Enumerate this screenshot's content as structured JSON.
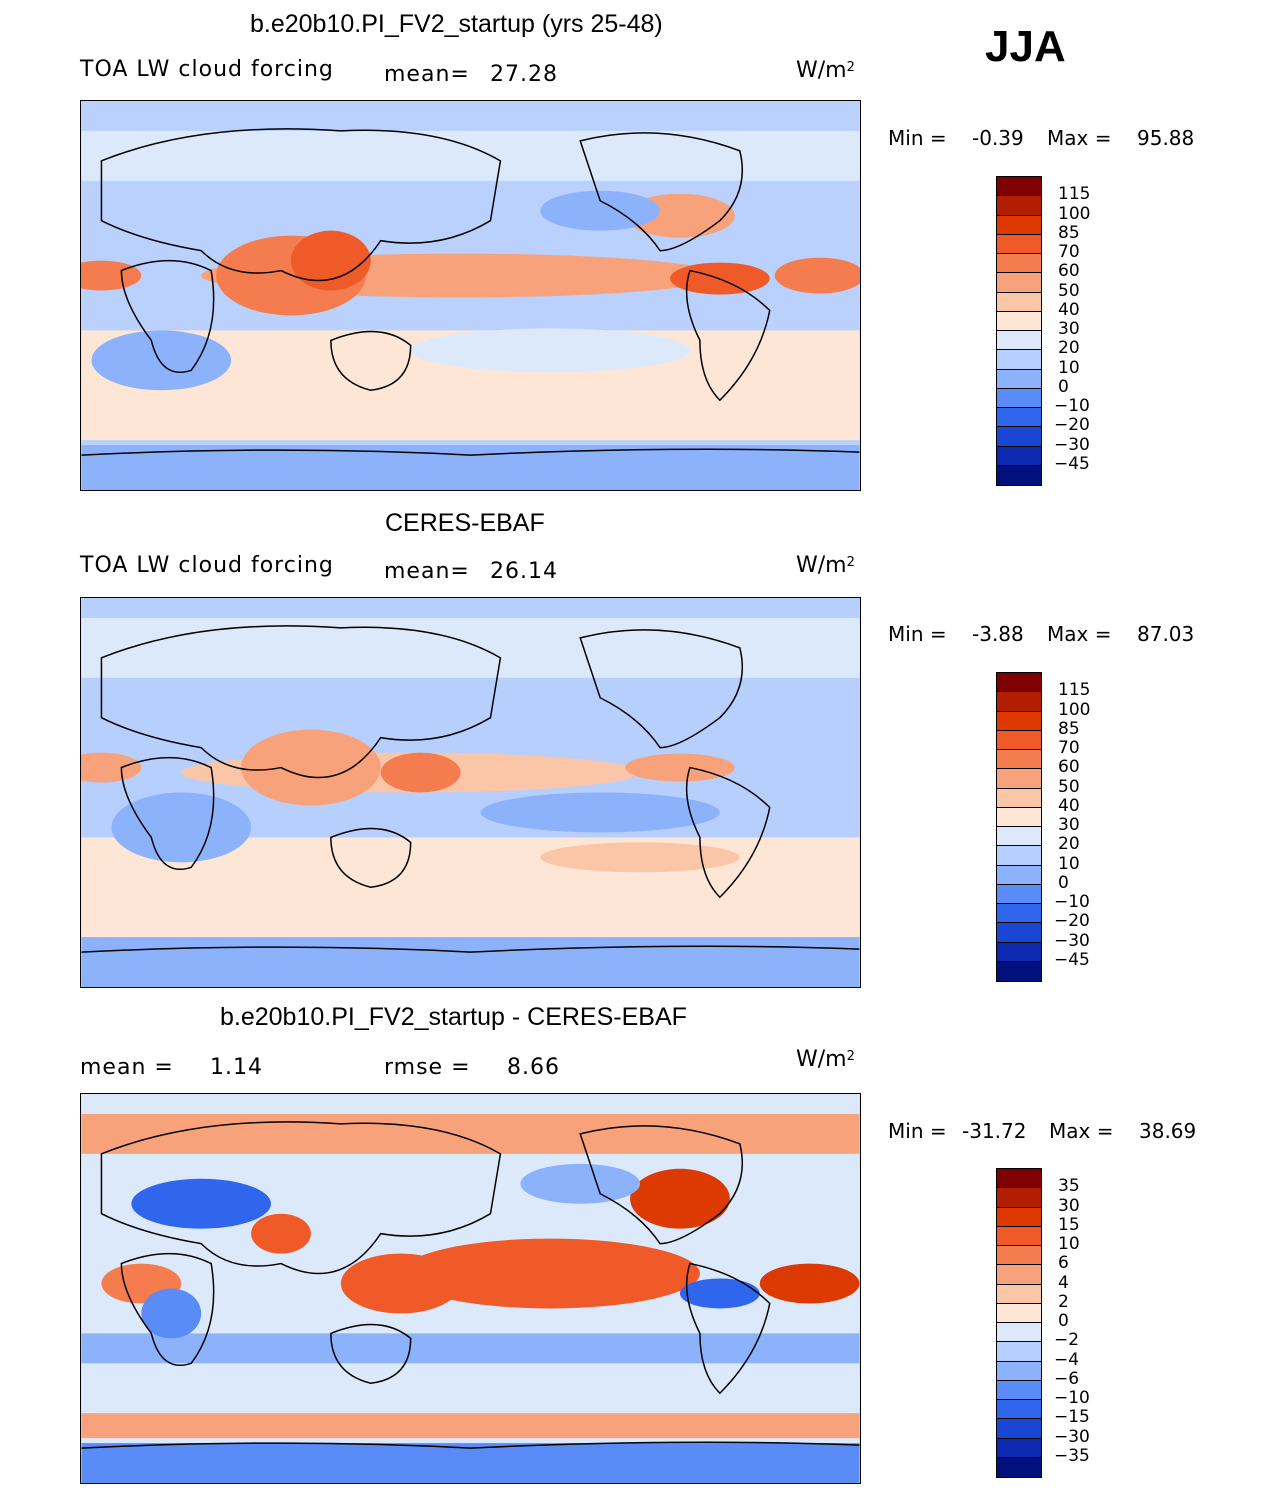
{
  "season": "JJA",
  "colors": {
    "ocean_base": "#c6dcff",
    "land_line": "#000000"
  },
  "panels": [
    {
      "id": "model",
      "title": "b.e20b10.PI_FV2_startup (yrs 25-48)",
      "left_label": "TOA LW cloud forcing",
      "stat1_label": "mean=",
      "stat1_value": "27.28",
      "units_base": "W/m",
      "units_sup": "2",
      "min_label": "Min =",
      "min_value": "-0.39",
      "max_label": "Max =",
      "max_value": "95.88",
      "colorbar": {
        "labels": [
          "115",
          "100",
          "85",
          "70",
          "60",
          "50",
          "40",
          "30",
          "20",
          "10",
          "0",
          "−10",
          "−20",
          "−30",
          "−45"
        ],
        "colors": [
          "#7f0000",
          "#b21e00",
          "#dc3a00",
          "#f05a28",
          "#f47c4e",
          "#f8a27c",
          "#fbc6a8",
          "#fde6d6",
          "#dce9fb",
          "#b6cffc",
          "#8bb2fb",
          "#5a8cf7",
          "#3066ee",
          "#1a46d6",
          "#0c2ab0",
          "#00107d"
        ]
      }
    },
    {
      "id": "obs",
      "title": "CERES-EBAF",
      "left_label": "TOA LW cloud forcing",
      "stat1_label": "mean=",
      "stat1_value": "26.14",
      "units_base": "W/m",
      "units_sup": "2",
      "min_label": "Min =",
      "min_value": "-3.88",
      "max_label": "Max =",
      "max_value": "87.03",
      "colorbar": {
        "labels": [
          "115",
          "100",
          "85",
          "70",
          "60",
          "50",
          "40",
          "30",
          "20",
          "10",
          "0",
          "−10",
          "−20",
          "−30",
          "−45"
        ],
        "colors": [
          "#7f0000",
          "#b21e00",
          "#dc3a00",
          "#f05a28",
          "#f47c4e",
          "#f8a27c",
          "#fbc6a8",
          "#fde6d6",
          "#dce9fb",
          "#b6cffc",
          "#8bb2fb",
          "#5a8cf7",
          "#3066ee",
          "#1a46d6",
          "#0c2ab0",
          "#00107d"
        ]
      }
    },
    {
      "id": "diff",
      "title": "b.e20b10.PI_FV2_startup - CERES-EBAF",
      "left_label": "mean =",
      "stat1_label": "",
      "stat1_value": "1.14",
      "stat2_label": "rmse =",
      "stat2_value": "8.66",
      "units_base": "W/m",
      "units_sup": "2",
      "min_label": "Min =",
      "min_value": "-31.72",
      "max_label": "Max =",
      "max_value": "38.69",
      "colorbar": {
        "labels": [
          "35",
          "30",
          "15",
          "10",
          "6",
          "4",
          "2",
          "0",
          "−2",
          "−4",
          "−6",
          "−10",
          "−15",
          "−30",
          "−35"
        ],
        "colors": [
          "#7f0000",
          "#b21e00",
          "#dc3a00",
          "#f05a28",
          "#f47c4e",
          "#f8a27c",
          "#fbc6a8",
          "#fde6d6",
          "#dce9fb",
          "#b6cffc",
          "#8bb2fb",
          "#5a8cf7",
          "#3066ee",
          "#1a46d6",
          "#0c2ab0",
          "#00107d"
        ]
      }
    }
  ],
  "chart_data": [
    {
      "type": "heatmap",
      "title": "b.e20b10.PI_FV2_startup (yrs 25-48)",
      "variable": "TOA LW cloud forcing",
      "units": "W/m2",
      "mean": 27.28,
      "min": -0.39,
      "max": 95.88,
      "levels": [
        -45,
        -30,
        -20,
        -10,
        0,
        10,
        20,
        30,
        40,
        50,
        60,
        70,
        85,
        100,
        115
      ],
      "projection": "cylindrical equidistant, centered on Pacific",
      "xlim": [
        0,
        360
      ],
      "ylim": [
        -90,
        90
      ]
    },
    {
      "type": "heatmap",
      "title": "CERES-EBAF",
      "variable": "TOA LW cloud forcing",
      "units": "W/m2",
      "mean": 26.14,
      "min": -3.88,
      "max": 87.03,
      "levels": [
        -45,
        -30,
        -20,
        -10,
        0,
        10,
        20,
        30,
        40,
        50,
        60,
        70,
        85,
        100,
        115
      ],
      "xlim": [
        0,
        360
      ],
      "ylim": [
        -90,
        90
      ]
    },
    {
      "type": "heatmap",
      "title": "b.e20b10.PI_FV2_startup - CERES-EBAF",
      "units": "W/m2",
      "mean": 1.14,
      "rmse": 8.66,
      "min": -31.72,
      "max": 38.69,
      "levels": [
        -35,
        -30,
        -15,
        -10,
        -6,
        -4,
        -2,
        0,
        2,
        4,
        6,
        10,
        15,
        30,
        35
      ],
      "xlim": [
        0,
        360
      ],
      "ylim": [
        -90,
        90
      ]
    }
  ]
}
